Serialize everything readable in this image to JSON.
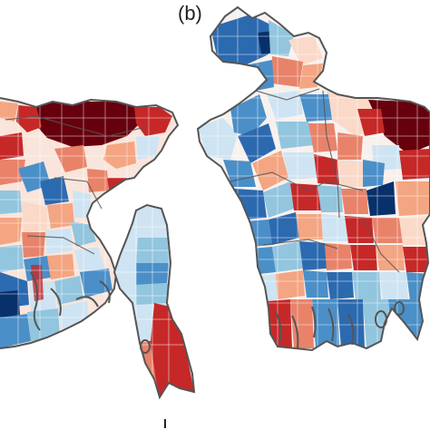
{
  "panel": {
    "label": "(b)"
  },
  "colors": {
    "dark_red": "#67000d",
    "red": "#c62828",
    "orange_red": "#e8836a",
    "salmon": "#f4a582",
    "light_pink": "#fbd9c8",
    "pale": "#f7f1ee",
    "light_blue": "#cfe4f2",
    "sky_blue": "#92c5de",
    "mid_blue": "#4b8fc8",
    "blue": "#2c6ab0",
    "dark_blue": "#08306b",
    "boundary": "#555555"
  },
  "maps": [
    {
      "name": "left-map-cropped"
    },
    {
      "name": "right-map"
    }
  ]
}
